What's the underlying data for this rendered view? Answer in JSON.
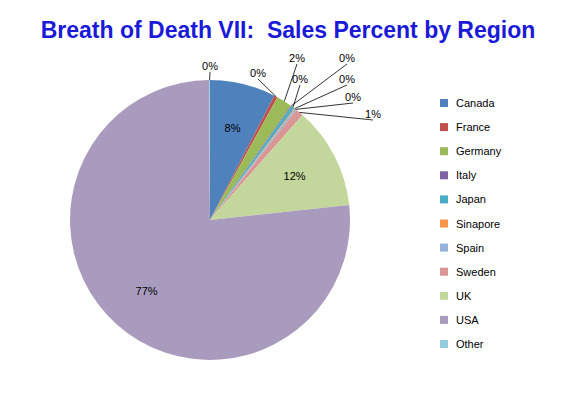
{
  "chart_data": {
    "type": "pie",
    "title": "Breath of Death VII:  Sales Percent by Region",
    "categories": [
      "Canada",
      "France",
      "Germany",
      "Italy",
      "Japan",
      "Sinapore",
      "Spain",
      "Sweden",
      "UK",
      "USA",
      "Other"
    ],
    "values": [
      7.6,
      0.4,
      1.8,
      0.1,
      0.4,
      0.1,
      0.2,
      0.9,
      11.8,
      76.6,
      0.1
    ],
    "value_labels": [
      "8%",
      "0%",
      "2%",
      "0%",
      "0%",
      "0%",
      "0%",
      "1%",
      "12%",
      "77%",
      "0%"
    ],
    "colors": [
      "#4f81bd",
      "#c0504d",
      "#9bbb59",
      "#8064a2",
      "#4bacc6",
      "#f79646",
      "#95b3d7",
      "#d99694",
      "#c3d69b",
      "#a99bbd",
      "#93cddd"
    ],
    "data_labels": true,
    "legend": "right"
  }
}
